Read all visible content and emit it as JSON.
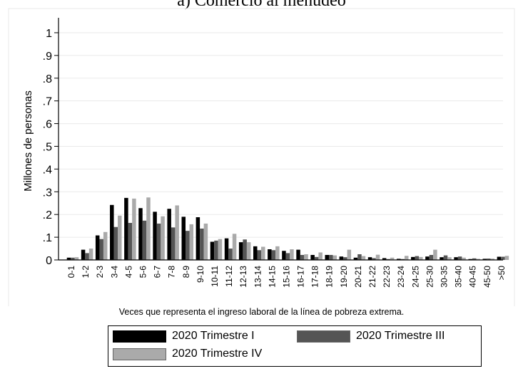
{
  "chart_data": {
    "type": "bar",
    "title": "a) Comercio al menudeo",
    "xlabel": "Veces que representa el ingreso laboral de la línea de pobreza extrema.",
    "ylabel": "Millones de personas",
    "ylim": [
      0,
      1.05
    ],
    "yticks": [
      0,
      0.1,
      0.2,
      0.3,
      0.4,
      0.5,
      0.6,
      0.7,
      0.8,
      0.9,
      1
    ],
    "ytick_labels": [
      "0",
      ".1",
      ".2",
      ".3",
      ".4",
      ".5",
      ".6",
      ".7",
      ".8",
      ".9",
      "1"
    ],
    "grid": true,
    "legend_position": "bottom",
    "categories": [
      "0-1",
      "1-2",
      "2-3",
      "3-4",
      "4-5",
      "5-6",
      "6-7",
      "7-8",
      "8-9",
      "9-10",
      "10-11",
      "11-12",
      "12-13",
      "13-14",
      "14-15",
      "15-16",
      "16-17",
      "17-18",
      "18-19",
      "19-20",
      "20-21",
      "21-22",
      "22-23",
      "23-24",
      "24-25",
      "25-30",
      "30-35",
      "35-40",
      "40-45",
      "45-50",
      ">50"
    ],
    "series": [
      {
        "name": "2020 Trimestre I",
        "color": "#000000",
        "values": [
          0.01,
          0.045,
          0.108,
          0.242,
          0.273,
          0.228,
          0.212,
          0.225,
          0.19,
          0.188,
          0.08,
          0.095,
          0.078,
          0.06,
          0.047,
          0.04,
          0.045,
          0.022,
          0.022,
          0.015,
          0.01,
          0.012,
          0.008,
          0.005,
          0.013,
          0.015,
          0.012,
          0.012,
          0.004,
          0.005,
          0.014
        ]
      },
      {
        "name": "2020 Trimestre III",
        "color": "#555555",
        "values": [
          0.01,
          0.03,
          0.092,
          0.145,
          0.163,
          0.173,
          0.16,
          0.143,
          0.128,
          0.138,
          0.085,
          0.05,
          0.09,
          0.043,
          0.043,
          0.03,
          0.022,
          0.013,
          0.022,
          0.012,
          0.025,
          0.008,
          0.004,
          0.004,
          0.017,
          0.022,
          0.02,
          0.015,
          0.007,
          0.006,
          0.014
        ]
      },
      {
        "name": "2020 Trimestre IV",
        "color": "#aaaaaa",
        "values": [
          0.012,
          0.05,
          0.123,
          0.195,
          0.27,
          0.275,
          0.192,
          0.24,
          0.157,
          0.16,
          0.092,
          0.115,
          0.078,
          0.058,
          0.06,
          0.047,
          0.025,
          0.033,
          0.02,
          0.045,
          0.017,
          0.023,
          0.01,
          0.018,
          0.013,
          0.045,
          0.012,
          0.01,
          0.005,
          0.006,
          0.018
        ]
      }
    ]
  }
}
